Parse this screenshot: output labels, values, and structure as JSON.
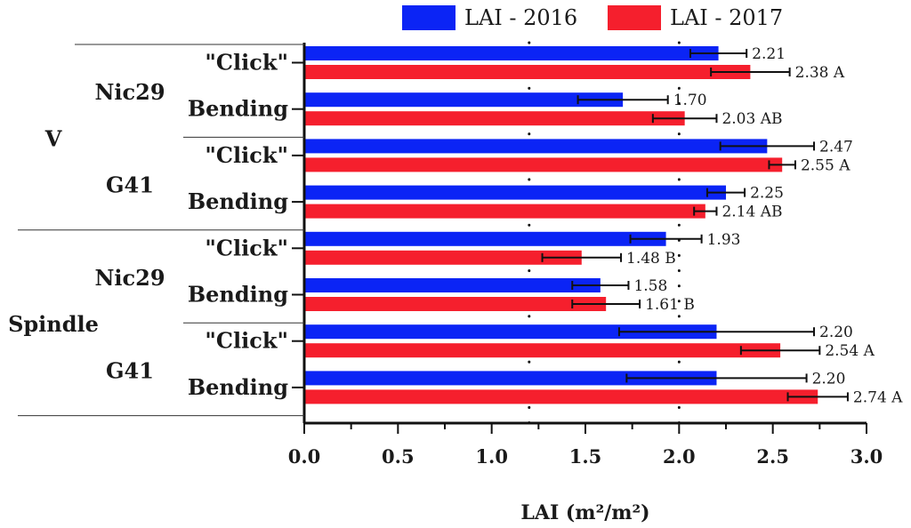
{
  "chart_data": {
    "type": "bar",
    "orientation": "horizontal",
    "xlabel": "LAI (m²/m²)",
    "xlim": [
      0,
      3.0
    ],
    "xticks": [
      0.0,
      0.5,
      1.0,
      1.5,
      2.0,
      2.5,
      3.0
    ],
    "xtick_labels": [
      "0.0",
      "0.5",
      "1.0",
      "1.5",
      "2.0",
      "2.5",
      "3.0"
    ],
    "reference_lines": [
      1.2,
      2.0
    ],
    "legend_position": "top",
    "series": [
      {
        "name": "LAI - 2016",
        "color": "#0b24f5"
      },
      {
        "name": "LAI - 2017",
        "color": "#f51f2d"
      }
    ],
    "groups": [
      {
        "system": "V",
        "cultivars": [
          {
            "name": "Nic29",
            "categories": [
              {
                "label": "\"Click\"",
                "values": [
                  2.21,
                  2.38
                ],
                "errors": [
                  0.15,
                  0.21
                ],
                "labels": [
                  "2.21",
                  "2.38 A"
                ]
              },
              {
                "label": "Bending",
                "values": [
                  1.7,
                  2.03
                ],
                "errors": [
                  0.24,
                  0.17
                ],
                "labels": [
                  "1.70",
                  "2.03 AB"
                ]
              }
            ]
          },
          {
            "name": "G41",
            "categories": [
              {
                "label": "\"Click\"",
                "values": [
                  2.47,
                  2.55
                ],
                "errors": [
                  0.25,
                  0.07
                ],
                "labels": [
                  "2.47",
                  "2.55 A"
                ]
              },
              {
                "label": "Bending",
                "values": [
                  2.25,
                  2.14
                ],
                "errors": [
                  0.1,
                  0.06
                ],
                "labels": [
                  "2.25",
                  "2.14 AB"
                ]
              }
            ]
          }
        ]
      },
      {
        "system": "Spindle",
        "cultivars": [
          {
            "name": "Nic29",
            "categories": [
              {
                "label": "\"Click\"",
                "values": [
                  1.93,
                  1.48
                ],
                "errors": [
                  0.19,
                  0.21
                ],
                "labels": [
                  "1.93",
                  "1.48 B"
                ]
              },
              {
                "label": "Bending",
                "values": [
                  1.58,
                  1.61
                ],
                "errors": [
                  0.15,
                  0.18
                ],
                "labels": [
                  "1.58",
                  "1.61 B"
                ]
              }
            ]
          },
          {
            "name": "G41",
            "categories": [
              {
                "label": "\"Click\"",
                "values": [
                  2.2,
                  2.54
                ],
                "errors": [
                  0.52,
                  0.21
                ],
                "labels": [
                  "2.20",
                  "2.54 A"
                ]
              },
              {
                "label": "Bending",
                "values": [
                  2.2,
                  2.74
                ],
                "errors": [
                  0.48,
                  0.16
                ],
                "labels": [
                  "2.20",
                  "2.74 A"
                ]
              }
            ]
          }
        ]
      }
    ]
  }
}
